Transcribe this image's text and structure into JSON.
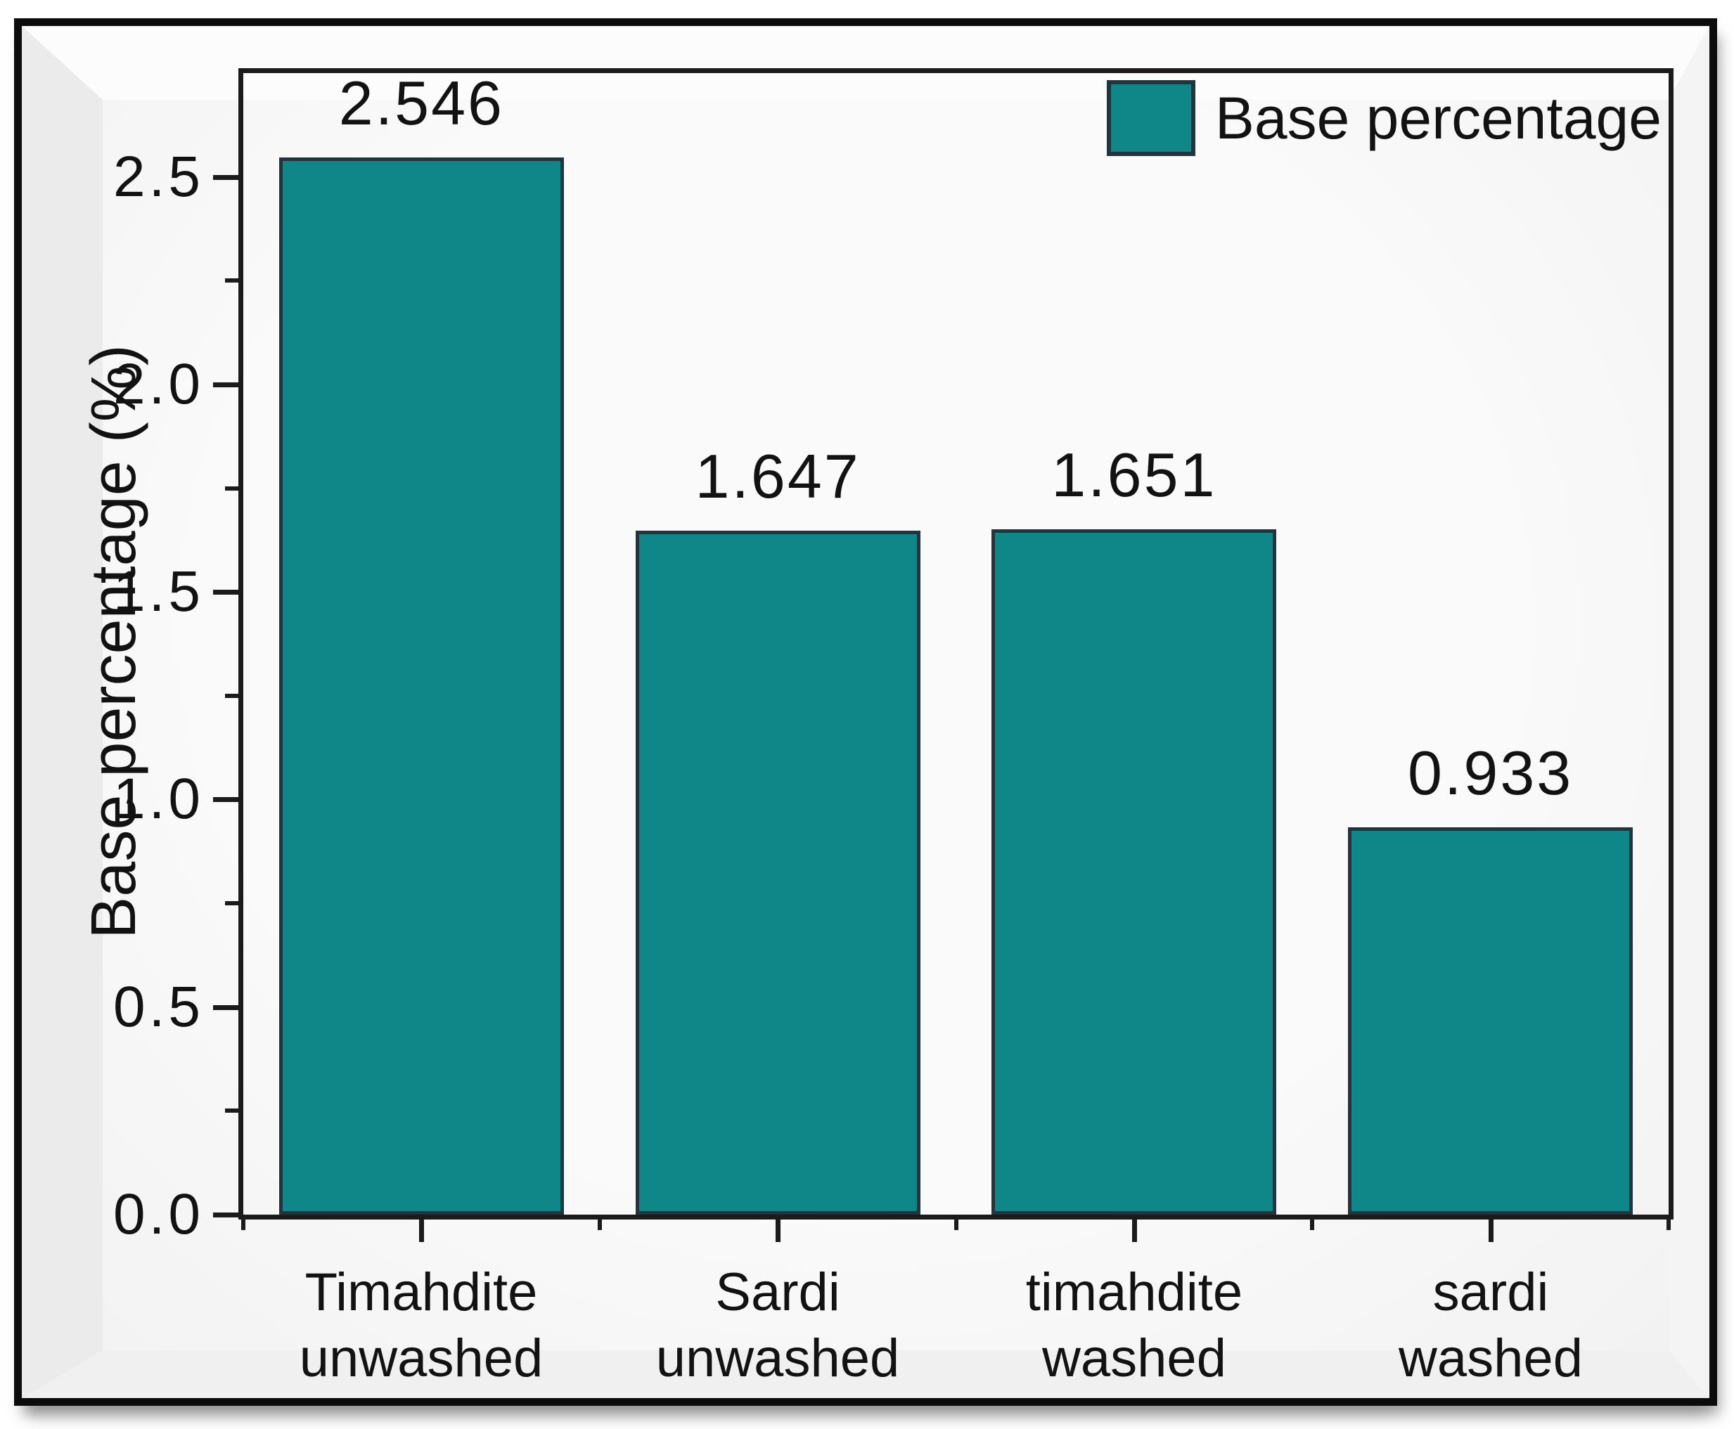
{
  "chart_data": {
    "type": "bar",
    "title": "",
    "categories": [
      "Timahdite unwashed",
      "Sardi unwashed",
      "timahdite washed",
      "sardi washed"
    ],
    "categories_multiline": [
      [
        "Timahdite",
        "unwashed"
      ],
      [
        "Sardi",
        "unwashed"
      ],
      [
        "timahdite",
        "washed"
      ],
      [
        "sardi",
        "washed"
      ]
    ],
    "values": [
      2.546,
      1.647,
      1.651,
      0.933
    ],
    "value_labels": [
      "2.546",
      "1.647",
      "1.651",
      "0.933"
    ],
    "series": [
      {
        "name": "Base percentage",
        "values": [
          2.546,
          1.647,
          1.651,
          0.933
        ]
      }
    ],
    "xlabel": "",
    "ylabel": "Base percentage (%)",
    "ylim": [
      0,
      2.75
    ],
    "yticks_major": [
      0.0,
      0.5,
      1.0,
      1.5,
      2.0,
      2.5
    ],
    "ytick_labels": [
      "0.0",
      "0.5",
      "1.0",
      "1.5",
      "2.0",
      "2.5"
    ],
    "yticks_minor": [
      0.25,
      0.75,
      1.25,
      1.75,
      2.25
    ],
    "grid": false,
    "legend": {
      "label": "Base percentage",
      "position": "top-right"
    },
    "colors": {
      "bar_fill": "#0f8789",
      "bar_edge": "#24343c",
      "axis": "#1b1b1b",
      "text": "#121212",
      "plot_background": "#f7f7f7",
      "frame": "#0c0c0c"
    }
  }
}
